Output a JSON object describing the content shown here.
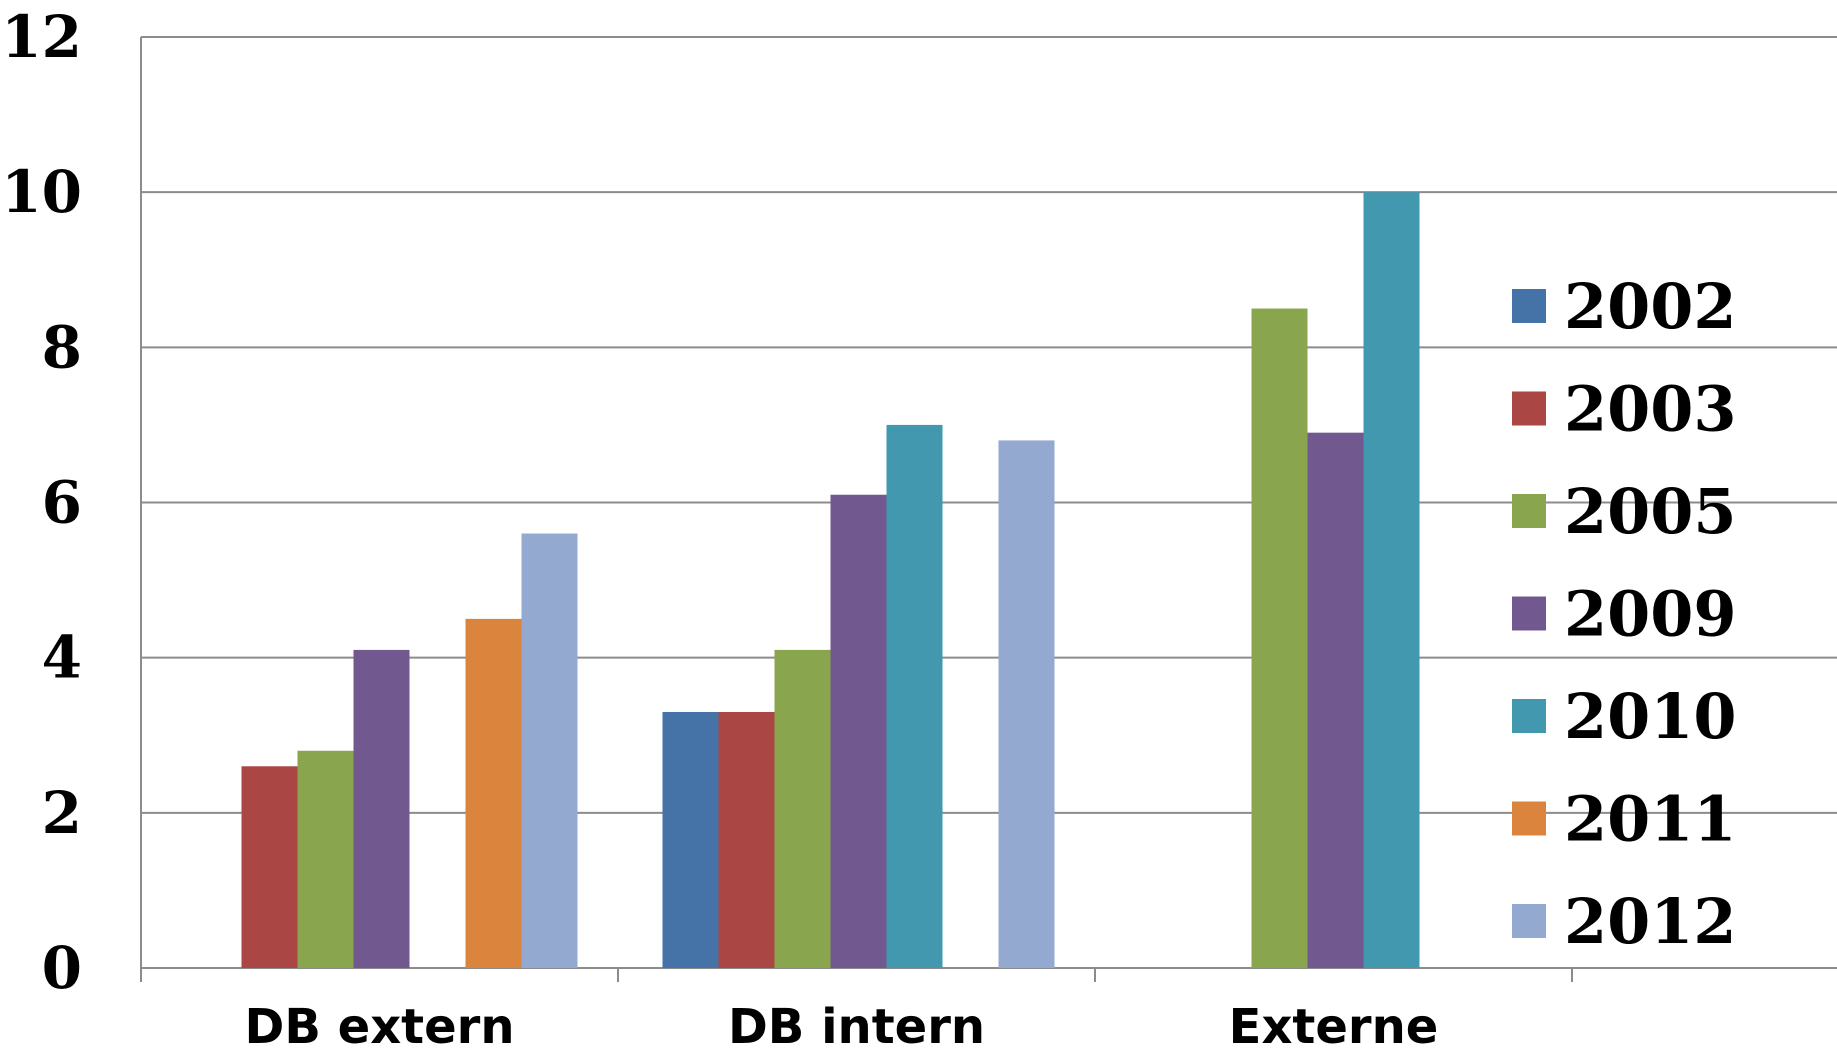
{
  "chart_data": {
    "type": "bar",
    "categories": [
      "DB extern",
      "DB intern",
      "Externe"
    ],
    "series": [
      {
        "name": "2002",
        "values": [
          null,
          3.3,
          null
        ],
        "color": "#4572A7"
      },
      {
        "name": "2003",
        "values": [
          2.6,
          3.3,
          null
        ],
        "color": "#AA4643"
      },
      {
        "name": "2005",
        "values": [
          2.8,
          4.1,
          8.5
        ],
        "color": "#89A54E"
      },
      {
        "name": "2009",
        "values": [
          4.1,
          6.1,
          6.9
        ],
        "color": "#71588F"
      },
      {
        "name": "2010",
        "values": [
          null,
          7.0,
          10.0
        ],
        "color": "#4198AF"
      },
      {
        "name": "2011",
        "values": [
          4.5,
          null,
          null
        ],
        "color": "#DB843D"
      },
      {
        "name": "2012",
        "values": [
          5.6,
          6.8,
          null
        ],
        "color": "#93A9CF"
      }
    ],
    "yticks": [
      "0",
      "2",
      "4",
      "6",
      "8",
      "10",
      "12"
    ],
    "ylim": [
      0,
      12
    ],
    "grid": true,
    "legend_position": "right",
    "title": "",
    "xlabel": "",
    "ylabel": ""
  }
}
